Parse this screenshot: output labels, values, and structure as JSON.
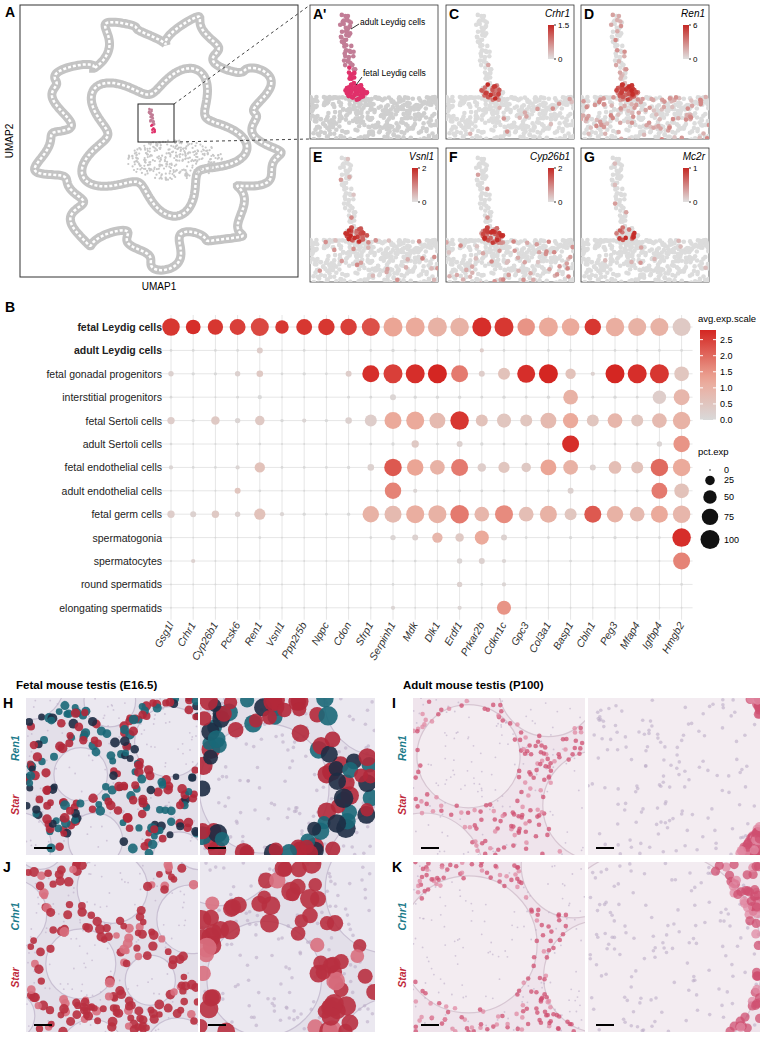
{
  "umap": {
    "label": "A",
    "xlabel": "UMAP1",
    "ylabel": "UMAP2"
  },
  "zoom": {
    "label": "A'",
    "annotations": [
      "adult Leydig cells",
      "fetal Leydig cells"
    ]
  },
  "feature_plots": [
    {
      "label": "C",
      "gene": "Crhr1",
      "color_range": [
        0,
        1.5
      ],
      "color_ticks": [
        0,
        1.5
      ]
    },
    {
      "label": "D",
      "gene": "Ren1",
      "color_range": [
        0,
        6
      ],
      "color_ticks": [
        0,
        6
      ]
    },
    {
      "label": "E",
      "gene": "Vsnl1",
      "color_range": [
        0,
        2
      ],
      "color_ticks": [
        0,
        2
      ]
    },
    {
      "label": "F",
      "gene": "Cyp26b1",
      "color_range": [
        0,
        2
      ],
      "color_ticks": [
        0,
        2
      ]
    },
    {
      "label": "G",
      "gene": "Mc2r",
      "color_range": [
        0,
        1
      ],
      "color_ticks": [
        0,
        1
      ]
    }
  ],
  "chart_data": {
    "type": "dot",
    "title": "B",
    "categories": [
      "Gsg1l",
      "Crhr1",
      "Cyp26b1",
      "Pcsk6",
      "Ren1",
      "Vsnl1",
      "Ppp2r5b",
      "Nppc",
      "Cdon",
      "Sfrp1",
      "Serpinh1",
      "Mdk",
      "Dlk1",
      "Erdf1",
      "Prkar2b",
      "Cdkn1c",
      "Gpc3",
      "Col3a1",
      "Basp1",
      "Cbln1",
      "Peg3",
      "Mfap4",
      "Igfbp4",
      "Hmgb2"
    ],
    "series": [
      {
        "name": "fetal Leydig cells",
        "values": [
          2.6,
          2.7,
          2.6,
          2.5,
          2.4,
          2.6,
          2.6,
          2.6,
          2.5,
          2.3,
          1.3,
          1.2,
          1.0,
          1.0,
          2.7,
          2.6,
          1.5,
          1.2,
          1.2,
          2.6,
          1.1,
          1.0,
          1.0,
          0.4
        ],
        "pct": [
          85,
          60,
          65,
          70,
          90,
          50,
          70,
          75,
          75,
          90,
          100,
          100,
          100,
          95,
          100,
          100,
          85,
          100,
          85,
          75,
          95,
          90,
          90,
          90
        ]
      },
      {
        "name": "adult Leydig cells",
        "values": [
          0,
          0,
          0,
          0,
          0.3,
          0,
          0,
          0,
          0,
          0,
          0,
          0,
          0,
          0,
          0.3,
          0,
          0,
          0,
          0,
          0,
          0,
          0,
          0,
          0
        ],
        "pct": [
          2,
          2,
          2,
          2,
          10,
          1,
          2,
          1,
          1,
          2,
          3,
          2,
          2,
          2,
          5,
          2,
          1,
          2,
          2,
          1,
          2,
          2,
          2,
          2
        ]
      },
      {
        "name": "fetal gonadal progenitors",
        "values": [
          0.2,
          0,
          0,
          0.2,
          0.4,
          0,
          0,
          0,
          0.3,
          2.7,
          2.5,
          2.7,
          2.8,
          1.8,
          0.3,
          0.6,
          2.7,
          2.8,
          0.6,
          0.2,
          2.8,
          2.7,
          2.6,
          0.5
        ],
        "pct": [
          8,
          3,
          3,
          8,
          12,
          2,
          3,
          2,
          10,
          80,
          100,
          100,
          100,
          80,
          10,
          40,
          90,
          100,
          30,
          5,
          100,
          100,
          100,
          60
        ]
      },
      {
        "name": "interstitial progenitors",
        "values": [
          0,
          0,
          0,
          0,
          0,
          0,
          0,
          0,
          0,
          0,
          0.1,
          0,
          0,
          0,
          0,
          0,
          0,
          0,
          1.0,
          0,
          0,
          0,
          0.3,
          0.9
        ],
        "pct": [
          2,
          1,
          1,
          2,
          5,
          1,
          1,
          1,
          2,
          2,
          10,
          3,
          3,
          3,
          2,
          3,
          2,
          3,
          60,
          2,
          3,
          2,
          50,
          70
        ]
      },
      {
        "name": "fetal Sertoli cells",
        "values": [
          0.3,
          0,
          0.4,
          0.1,
          0.4,
          0,
          0.1,
          0,
          0.2,
          0.3,
          1.2,
          1.2,
          0.8,
          2.6,
          0.6,
          0.5,
          0.5,
          0.8,
          1.2,
          0.5,
          0.9,
          0.5,
          0.8,
          1.0
        ],
        "pct": [
          15,
          3,
          20,
          8,
          25,
          3,
          5,
          3,
          12,
          40,
          80,
          90,
          70,
          95,
          40,
          55,
          40,
          70,
          65,
          40,
          60,
          40,
          60,
          85
        ]
      },
      {
        "name": "adult Sertoli cells",
        "values": [
          0,
          0,
          0,
          0,
          0,
          0,
          0,
          0,
          0,
          0,
          0,
          0.4,
          0,
          0.2,
          0,
          0,
          0,
          0,
          2.7,
          0,
          0,
          0,
          0.1,
          1.5
        ],
        "pct": [
          2,
          1,
          1,
          2,
          2,
          1,
          1,
          1,
          1,
          2,
          3,
          15,
          2,
          10,
          3,
          2,
          2,
          2,
          80,
          1,
          2,
          2,
          8,
          75
        ]
      },
      {
        "name": "fetal endothelial cells",
        "values": [
          0.1,
          0,
          0,
          0.1,
          0.6,
          0,
          0,
          0,
          0,
          0.2,
          2.2,
          1.3,
          1.0,
          1.8,
          0.3,
          0.5,
          0.4,
          1.3,
          1.0,
          0.2,
          0.7,
          0.6,
          2.0,
          1.2
        ],
        "pct": [
          5,
          2,
          2,
          5,
          30,
          2,
          2,
          2,
          3,
          12,
          85,
          75,
          60,
          80,
          20,
          35,
          25,
          70,
          60,
          10,
          45,
          40,
          85,
          85
        ]
      },
      {
        "name": "adult endothelial cells",
        "values": [
          0,
          0,
          0,
          0.5,
          0,
          0,
          0,
          0,
          0,
          0,
          1.7,
          0.1,
          0,
          0,
          0,
          0,
          0,
          0,
          0.2,
          0,
          0,
          0,
          1.8,
          0.6
        ],
        "pct": [
          1,
          1,
          1,
          10,
          2,
          1,
          1,
          1,
          1,
          1,
          75,
          5,
          2,
          2,
          2,
          2,
          1,
          2,
          10,
          1,
          2,
          2,
          70,
          60
        ]
      },
      {
        "name": "fetal germ cells",
        "values": [
          0.3,
          0.2,
          0.4,
          0.2,
          0.6,
          0.1,
          0,
          0,
          0,
          1.0,
          0.8,
          1.1,
          1.0,
          1.8,
          0.9,
          1.6,
          0.7,
          1.0,
          0.5,
          2.2,
          1.0,
          0.8,
          1.2,
          0.9
        ],
        "pct": [
          15,
          10,
          15,
          8,
          35,
          5,
          3,
          2,
          3,
          75,
          80,
          90,
          90,
          95,
          60,
          90,
          60,
          80,
          40,
          80,
          75,
          60,
          80,
          85
        ]
      },
      {
        "name": "spermatogonia",
        "values": [
          0,
          0,
          0,
          0,
          0,
          0,
          0,
          0,
          0,
          0,
          0.1,
          0.2,
          0.9,
          0.4,
          1.2,
          0.2,
          0,
          0,
          0,
          0,
          0,
          0,
          0,
          2.7
        ],
        "pct": [
          1,
          1,
          1,
          1,
          2,
          1,
          1,
          1,
          1,
          2,
          8,
          10,
          30,
          20,
          55,
          10,
          2,
          2,
          3,
          2,
          3,
          2,
          2,
          95
        ]
      },
      {
        "name": "spermatocytes",
        "values": [
          0,
          0.2,
          0,
          0,
          0,
          0,
          0,
          0,
          0,
          0,
          0,
          0,
          0,
          0.1,
          0.2,
          0.1,
          0,
          0,
          0,
          0,
          0,
          0,
          0,
          1.7
        ],
        "pct": [
          1,
          5,
          1,
          1,
          1,
          1,
          1,
          1,
          1,
          1,
          2,
          2,
          1,
          8,
          10,
          5,
          1,
          1,
          2,
          1,
          1,
          1,
          1,
          80
        ]
      },
      {
        "name": "round spermatids",
        "values": [
          0,
          0,
          0,
          0,
          0,
          0,
          0,
          0,
          0,
          0,
          0,
          0,
          0,
          0.2,
          0,
          0.1,
          0,
          0,
          0,
          0,
          0,
          0,
          0,
          0
        ],
        "pct": [
          1,
          1,
          1,
          1,
          1,
          1,
          1,
          1,
          1,
          1,
          2,
          1,
          1,
          8,
          2,
          5,
          1,
          1,
          1,
          1,
          1,
          1,
          1,
          2
        ]
      },
      {
        "name": "elongating spermatids",
        "values": [
          0,
          0,
          0,
          0,
          0,
          0,
          0,
          0,
          0,
          0,
          0.1,
          0,
          0,
          0.1,
          0,
          1.5,
          0,
          0,
          0,
          0,
          0,
          0,
          0,
          0
        ],
        "pct": [
          1,
          1,
          1,
          1,
          1,
          1,
          1,
          1,
          1,
          1,
          5,
          1,
          1,
          5,
          1,
          55,
          1,
          1,
          1,
          1,
          1,
          1,
          1,
          1
        ]
      }
    ],
    "color_label": "avg.exp.scale",
    "color_range": [
      0,
      2.8
    ],
    "color_ticks": [
      {
        "value": 0,
        "label": "0.0"
      },
      {
        "value": 0.5,
        "label": "0.5"
      },
      {
        "value": 1,
        "label": "1.0"
      },
      {
        "value": 1.5,
        "label": "1.5"
      },
      {
        "value": 2,
        "label": "2.0"
      },
      {
        "value": 2.5,
        "label": "2.5"
      }
    ],
    "size_label": "pct.exp",
    "size_ticks": [
      0,
      25,
      50,
      75,
      100
    ]
  },
  "ish": {
    "columns": [
      {
        "title": "Fetal mouse testis (E16.5)",
        "panels": [
          {
            "label": "H",
            "probes": [
              "Ren1",
              "Star"
            ]
          },
          {
            "label": "J",
            "probes": [
              "Crhr1",
              "Star"
            ]
          }
        ]
      },
      {
        "title": "Adult mouse testis (P100)",
        "panels": [
          {
            "label": "I",
            "probes": [
              "Ren1",
              "Star"
            ]
          },
          {
            "label": "K",
            "probes": [
              "Crhr1",
              "Star"
            ]
          }
        ]
      }
    ]
  }
}
